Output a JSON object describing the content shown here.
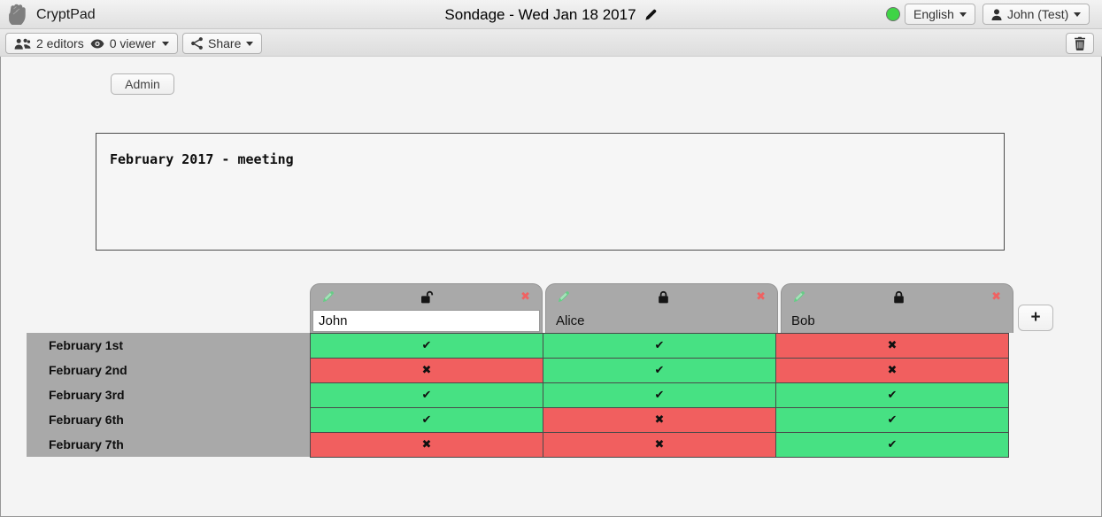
{
  "window": {
    "app_name": "CryptPad",
    "title": "Sondage - Wed Jan 18 2017"
  },
  "topbar": {
    "language": "English",
    "user": "John (Test)",
    "status_color": "#3fd446"
  },
  "toolbar": {
    "editors_label": "2 editors",
    "viewers_label": "0 viewer",
    "share_label": "Share"
  },
  "admin": {
    "label": "Admin"
  },
  "description": {
    "text": "February 2017 - meeting"
  },
  "poll": {
    "add_column_label": "+",
    "yes_glyph": "✔",
    "no_glyph": "✖",
    "delete_column_glyph": "✖",
    "columns": [
      {
        "name": "John",
        "editable": true,
        "locked": false
      },
      {
        "name": "Alice",
        "editable": false,
        "locked": true
      },
      {
        "name": "Bob",
        "editable": false,
        "locked": true
      }
    ],
    "rows": [
      {
        "label": "February 1st",
        "votes": [
          "yes",
          "yes",
          "no"
        ]
      },
      {
        "label": "February 2nd",
        "votes": [
          "no",
          "yes",
          "no"
        ]
      },
      {
        "label": "February 3rd",
        "votes": [
          "yes",
          "yes",
          "yes"
        ]
      },
      {
        "label": "February 6th",
        "votes": [
          "yes",
          "no",
          "yes"
        ]
      },
      {
        "label": "February 7th",
        "votes": [
          "no",
          "no",
          "yes"
        ]
      }
    ]
  },
  "colors": {
    "yes_bg": "#47e183",
    "no_bg": "#f15f5f",
    "column_header_gray": "#a9a9a9",
    "row_label_gray": "#a9a9a9",
    "delete_x_red": "#f06262",
    "pencil_green": "#63cf85"
  },
  "icons": {
    "logo": "fist-icon",
    "title_edit": "pencil-icon",
    "editors": "users-icon",
    "viewers": "eye-icon",
    "share": "share-nodes-icon",
    "user_menu": "person-icon",
    "delete_pad": "trash-icon",
    "column_edit": "pencil-icon",
    "column_locked": "lock-icon",
    "column_unlocked": "unlock-icon",
    "dropdown": "caret-down-icon"
  }
}
